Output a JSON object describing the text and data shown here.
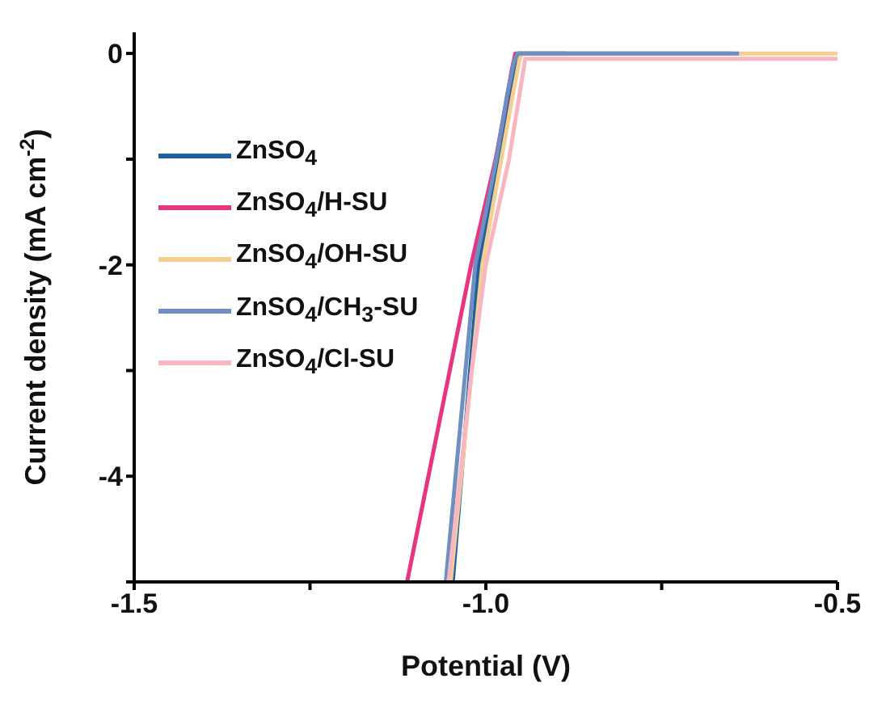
{
  "chart_data": {
    "type": "line",
    "xlabel": "Potential (V)",
    "ylabel": "Current density (mA cm$^{-2}$)",
    "xlim": [
      -1.5,
      -0.5
    ],
    "ylim": [
      -5,
      0.2
    ],
    "xticks": [
      {
        "value": -1.5,
        "label": "-1.5"
      },
      {
        "value": -1.25,
        "label": null
      },
      {
        "value": -1.0,
        "label": "-1.0"
      },
      {
        "value": -0.75,
        "label": null
      },
      {
        "value": -0.5,
        "label": "-0.5"
      }
    ],
    "yticks": [
      {
        "value": -5,
        "label": null
      },
      -4,
      {
        "value": -3,
        "label": null
      },
      -2,
      {
        "value": -1,
        "label": null
      },
      0
    ],
    "grid": false,
    "legend": "top left",
    "marker": "none",
    "line_style": "solid",
    "series": [
      {
        "name": "ZnSO$_{4}$",
        "color": "#1f5fa0",
        "x": [
          -1.047,
          -1.01,
          -0.982,
          -0.967,
          -0.958,
          -0.953,
          -0.886
        ],
        "values": [
          -5,
          -2,
          -1,
          -0.4,
          -0.08,
          0,
          0
        ]
      },
      {
        "name": "ZnSO$_{4}$/H-SU",
        "color": "#e8357f",
        "x": [
          -1.112,
          -1.021,
          -0.986,
          -0.972,
          -0.963,
          -0.958,
          -0.65
        ],
        "values": [
          -5,
          -2,
          -1,
          -0.5,
          -0.15,
          0,
          0
        ]
      },
      {
        "name": "ZnSO$_{4}$/OH-SU",
        "color": "#f5cf90",
        "x": [
          -1.05,
          -1.005,
          -0.978,
          -0.962,
          -0.952,
          -0.948,
          -0.5
        ],
        "values": [
          -5,
          -2,
          -1,
          -0.4,
          -0.05,
          0,
          0
        ]
      },
      {
        "name": "ZnSO$_{4}$/CH$_{3}$-SU",
        "color": "#6f8fc0",
        "x": [
          -1.057,
          -1.015,
          -0.985,
          -0.97,
          -0.96,
          -0.955,
          -0.64
        ],
        "values": [
          -5,
          -2,
          -1,
          -0.4,
          -0.08,
          0,
          0
        ]
      },
      {
        "name": "ZnSO$_{4}$/Cl-SU",
        "color": "#f7b6c0",
        "x": [
          -1.053,
          -1.02,
          -1.0,
          -0.967,
          -0.95,
          -0.944,
          -0.5
        ],
        "values": [
          -5,
          -3,
          -2,
          -1,
          -0.3,
          -0.05,
          -0.05
        ]
      }
    ]
  }
}
